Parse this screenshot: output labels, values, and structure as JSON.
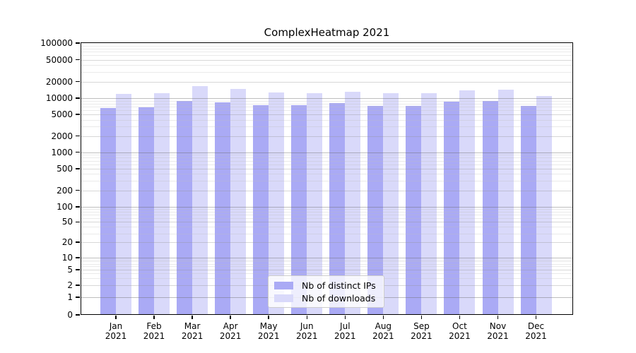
{
  "chart_data": {
    "type": "bar",
    "title": "ComplexHeatmap 2021",
    "xlabel": "",
    "ylabel": "",
    "year_label": "2021",
    "months": [
      "Jan",
      "Feb",
      "Mar",
      "Apr",
      "May",
      "Jun",
      "Jul",
      "Aug",
      "Sep",
      "Oct",
      "Nov",
      "Dec"
    ],
    "categories": [
      "Jan 2021",
      "Feb 2021",
      "Mar 2021",
      "Apr 2021",
      "May 2021",
      "Jun 2021",
      "Jul 2021",
      "Aug 2021",
      "Sep 2021",
      "Oct 2021",
      "Nov 2021",
      "Dec 2021"
    ],
    "series": [
      {
        "name": "Nb of distinct IPs",
        "color": "#aaaaf5",
        "values": [
          6540,
          6820,
          8930,
          8480,
          7370,
          7460,
          8160,
          7240,
          7150,
          8660,
          8930,
          7300
        ]
      },
      {
        "name": "Nb of downloads",
        "color": "#d9d9fa",
        "values": [
          12150,
          12400,
          16400,
          14840,
          12780,
          12250,
          13170,
          12400,
          12520,
          14000,
          14400,
          11100
        ]
      }
    ],
    "yscale": "log-like (1-2-5 labeled ticks, linear below 1)",
    "yticks": [
      100000,
      50000,
      20000,
      10000,
      5000,
      2000,
      1000,
      500,
      200,
      100,
      50,
      20,
      10,
      5,
      2,
      1,
      0
    ],
    "ylim": [
      0,
      100000
    ],
    "grid": true,
    "legend_position": "lower center"
  }
}
